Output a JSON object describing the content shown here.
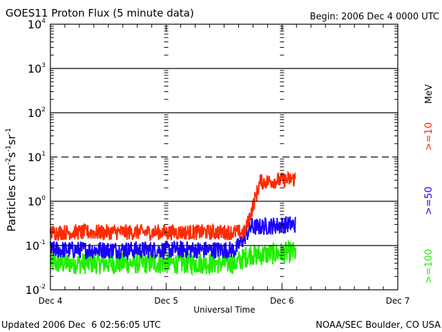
{
  "chart_data": {
    "type": "line",
    "title": "GOES11 Proton Flux (5 minute data)",
    "begin_label": "Begin: 2006 Dec 4 0000 UTC",
    "xlabel": "Universal Time",
    "ylabel": {
      "base": "Particles cm",
      "sup1": "-2",
      "mid1": "s",
      "sup2": "-1",
      "mid2": "sr",
      "sup3": "-1"
    },
    "y_scale": "log",
    "ylim": [
      0.01,
      10000
    ],
    "y_ticks": [
      {
        "value": 10000,
        "base": "10",
        "exp": "4"
      },
      {
        "value": 1000,
        "base": "10",
        "exp": "3"
      },
      {
        "value": 100,
        "base": "10",
        "exp": "2"
      },
      {
        "value": 10,
        "base": "10",
        "exp": "1"
      },
      {
        "value": 1,
        "base": "10",
        "exp": "0"
      },
      {
        "value": 0.1,
        "base": "10",
        "exp": "-1"
      },
      {
        "value": 0.01,
        "base": "10",
        "exp": "-2"
      }
    ],
    "gridlines": [
      {
        "value": 1000,
        "style": "solid"
      },
      {
        "value": 100,
        "style": "solid"
      },
      {
        "value": 10,
        "style": "dashed"
      },
      {
        "value": 1,
        "style": "solid"
      },
      {
        "value": 0.1,
        "style": "solid"
      }
    ],
    "xlim_days": [
      0,
      3
    ],
    "x_ticks": [
      {
        "day": 0,
        "label": "Dec 4"
      },
      {
        "day": 1,
        "label": "Dec 5"
      },
      {
        "day": 2,
        "label": "Dec 6"
      },
      {
        "day": 3,
        "label": "Dec 7"
      }
    ],
    "data_end_day": 2.12,
    "legend_unit": "MeV",
    "series": [
      {
        "name": ">=10",
        "color": "#ff2a00",
        "baseline": 0.2,
        "noise_decades": 0.18,
        "rise_start_day": 1.68,
        "rise_end_day": 1.82,
        "final": 3.2,
        "min_clip": 0.1
      },
      {
        "name": ">=50",
        "color": "#1a00ff",
        "baseline": 0.08,
        "noise_decades": 0.2,
        "rise_start_day": 1.6,
        "rise_end_day": 1.75,
        "final": 0.3,
        "min_clip": 0.045
      },
      {
        "name": ">=100",
        "color": "#22ee00",
        "baseline": 0.04,
        "noise_decades": 0.25,
        "rise_start_day": 1.6,
        "rise_end_day": 1.75,
        "final": 0.07,
        "min_clip": 0.02
      }
    ]
  },
  "footer": {
    "updated": "Updated 2006 Dec  6 02:56:05 UTC",
    "credit": "NOAA/SEC Boulder, CO USA"
  }
}
